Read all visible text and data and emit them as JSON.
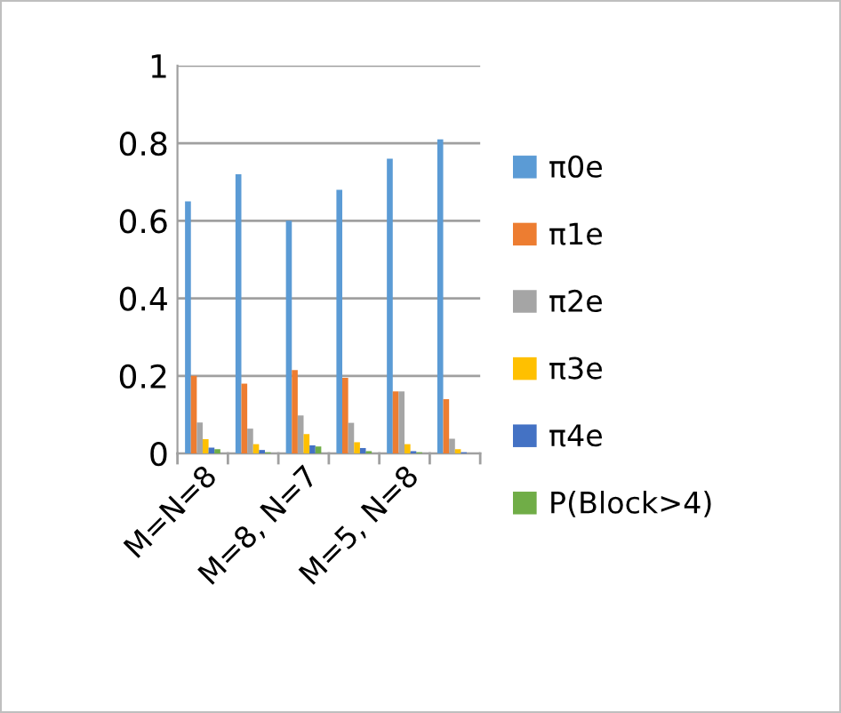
{
  "chart_data": {
    "type": "bar",
    "categories": [
      "M=N=8",
      null,
      "M=8, N=7",
      null,
      "M=5, N=8",
      null
    ],
    "series": [
      {
        "name": "π0e",
        "color": "#5b9bd5",
        "values": [
          0.65,
          0.72,
          0.6,
          0.68,
          0.76,
          0.81
        ]
      },
      {
        "name": "π1e",
        "color": "#ed7d31",
        "values": [
          0.2,
          0.18,
          0.215,
          0.195,
          0.16,
          0.14
        ]
      },
      {
        "name": "π2e",
        "color": "#a5a5a5",
        "values": [
          0.08,
          0.064,
          0.098,
          0.079,
          0.16,
          0.038
        ]
      },
      {
        "name": "π3e",
        "color": "#ffc000",
        "values": [
          0.037,
          0.024,
          0.05,
          0.029,
          0.024,
          0.011
        ]
      },
      {
        "name": "π4e",
        "color": "#4472c4",
        "values": [
          0.015,
          0.009,
          0.021,
          0.014,
          0.006,
          0.003
        ]
      },
      {
        "name": "P(Block>4)",
        "color": "#70ad47",
        "values": [
          0.011,
          0.003,
          0.018,
          0.006,
          0.003,
          null
        ]
      }
    ],
    "ylim": [
      0,
      1
    ],
    "yticks": [
      0,
      0.2,
      0.4,
      0.6,
      0.8,
      1
    ],
    "grid": "y",
    "legend": "right"
  }
}
